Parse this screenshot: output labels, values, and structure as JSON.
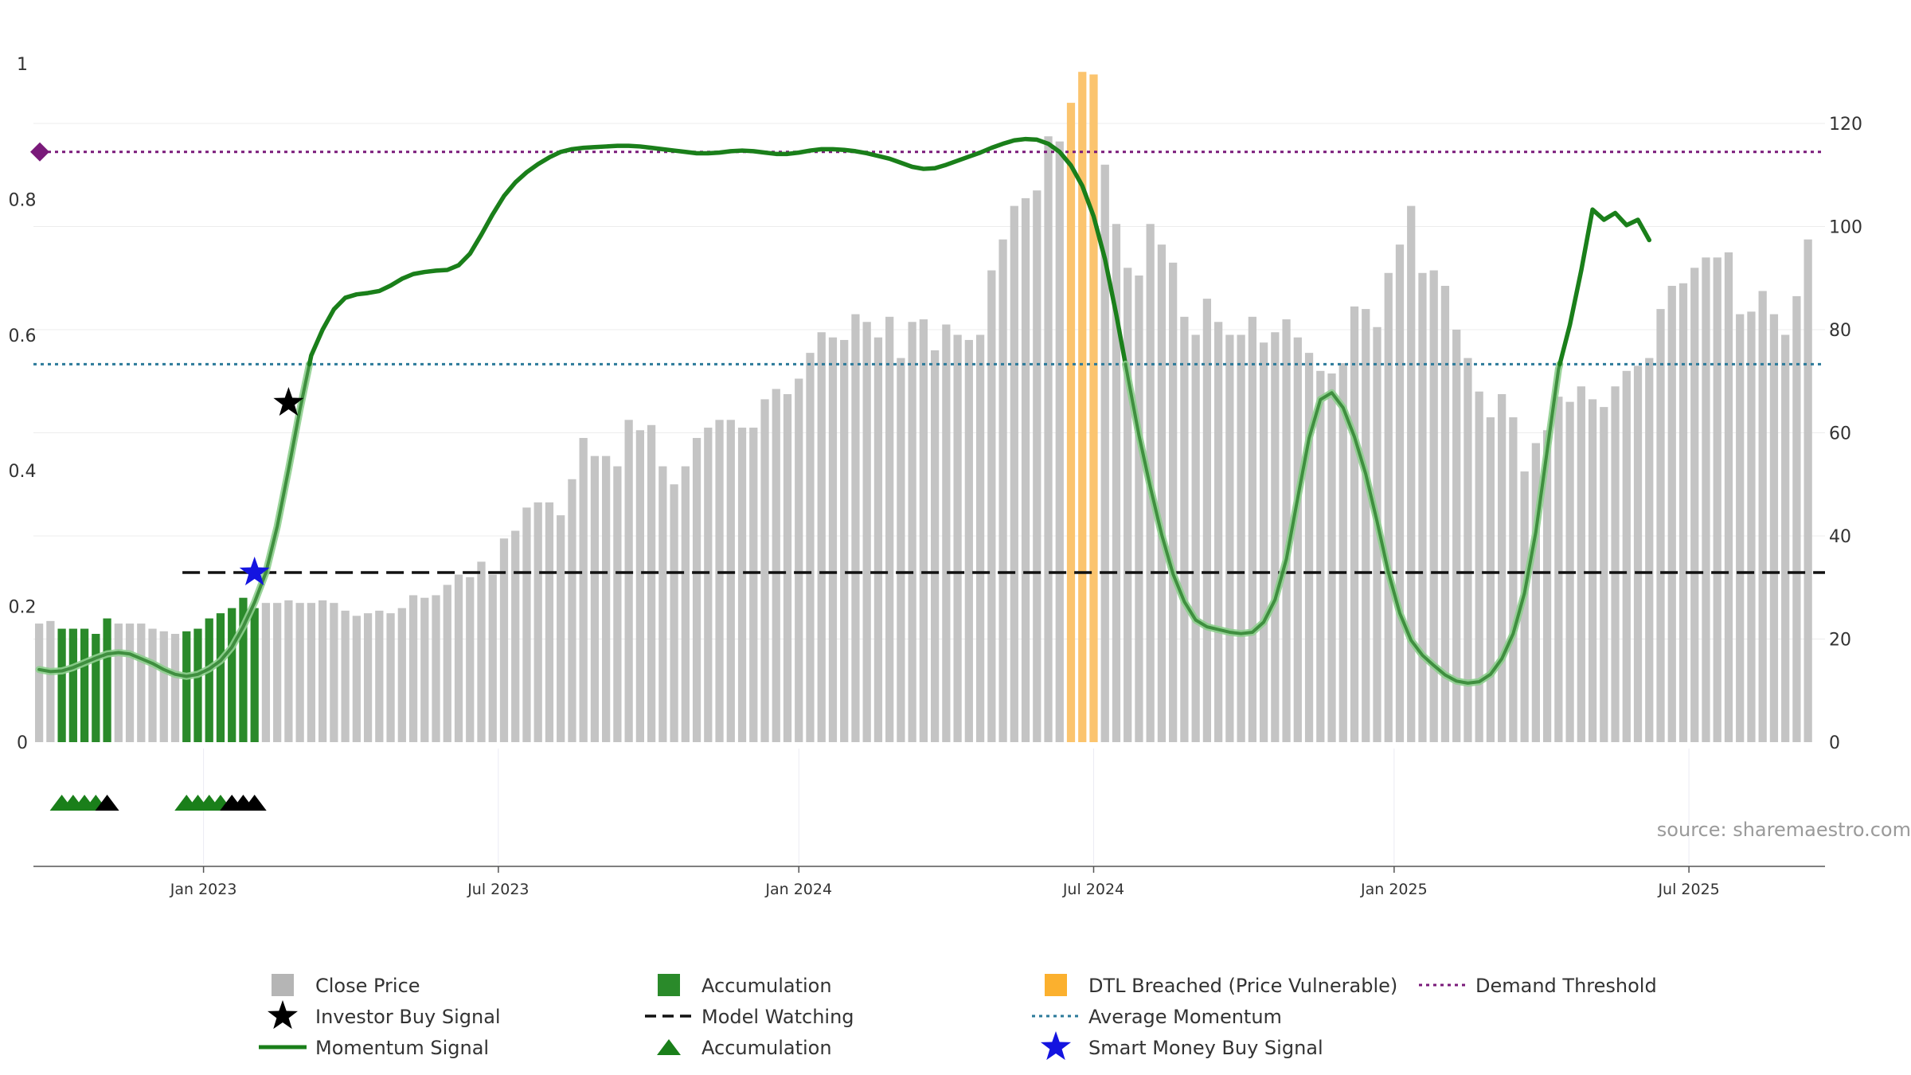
{
  "chart_data": {
    "type": "bar",
    "source_text": "source: sharemaestro.com",
    "left_axis": {
      "range": [
        0,
        1
      ],
      "ticks": [
        "0",
        "0.2",
        "0.4",
        "0.6",
        "0.8",
        "1"
      ],
      "tick_values": [
        0,
        0.2,
        0.4,
        0.6,
        0.8,
        1
      ]
    },
    "right_axis": {
      "range": [
        0,
        135
      ],
      "ticks": [
        "0",
        "20",
        "40",
        "60",
        "80",
        "100",
        "120"
      ],
      "tick_values": [
        0,
        20,
        40,
        60,
        80,
        100,
        120
      ]
    },
    "x_axis": {
      "n_weeks": 158,
      "ticks": [
        {
          "label": "Jan 2023",
          "week": 14.5
        },
        {
          "label": "Jul 2023",
          "week": 40.5
        },
        {
          "label": "Jan 2024",
          "week": 67
        },
        {
          "label": "Jul 2024",
          "week": 93
        },
        {
          "label": "Jan 2025",
          "week": 119.5
        },
        {
          "label": "Jul 2025",
          "week": 145.5
        }
      ]
    },
    "close_prices": [
      23,
      23.5,
      22,
      22,
      22,
      21,
      24,
      23,
      23,
      23,
      22,
      21.5,
      21,
      21.5,
      22,
      24,
      25,
      26,
      28,
      26,
      27,
      27,
      27.5,
      27,
      27,
      27.5,
      27,
      25.5,
      24.5,
      25,
      25.5,
      25,
      26,
      28.5,
      28,
      28.5,
      30.5,
      32.5,
      32,
      35,
      32.5,
      39.5,
      41,
      45.5,
      46.5,
      46.5,
      44,
      51,
      59,
      55.5,
      55.5,
      53.5,
      62.5,
      60.5,
      61.5,
      53.5,
      50,
      53.5,
      59,
      61,
      62.5,
      62.5,
      61,
      61,
      66.5,
      68.5,
      67.5,
      70.5,
      75.5,
      79.5,
      78.5,
      78,
      83,
      81.5,
      78.5,
      82.5,
      74.5,
      81.5,
      82,
      76,
      81,
      79,
      78,
      79,
      91.5,
      97.5,
      104,
      105.5,
      107,
      117.5,
      116.5,
      124,
      130,
      129.5,
      112,
      100.5,
      92,
      90.5,
      100.5,
      96.5,
      93,
      82.5,
      79,
      86,
      81.5,
      79,
      79,
      82.5,
      77.5,
      79.5,
      82,
      78.5,
      75.5,
      72,
      71.5,
      73.5,
      84.5,
      84,
      80.5,
      91,
      96.5,
      104,
      91,
      91.5,
      88.5,
      80,
      74.5,
      68,
      63,
      67.5,
      63,
      52.5,
      58,
      60.5,
      67,
      66,
      69,
      66.5,
      65,
      69,
      72,
      73,
      74.5,
      84,
      88.5,
      89,
      92,
      94,
      94,
      95,
      83,
      83.5,
      87.5,
      83,
      79,
      86.5,
      97.5
    ],
    "categories": {
      "accumulation_weeks": [
        2,
        3,
        4,
        5,
        6,
        13,
        14,
        15,
        16,
        17,
        18,
        19
      ],
      "dtl_breached_weeks": [
        91,
        92,
        93
      ]
    },
    "momentum_signal": [
      [
        0,
        0.107
      ],
      [
        1,
        0.104
      ],
      [
        2,
        0.105
      ],
      [
        3,
        0.11
      ],
      [
        4,
        0.117
      ],
      [
        5,
        0.124
      ],
      [
        6,
        0.13
      ],
      [
        7,
        0.132
      ],
      [
        8,
        0.13
      ],
      [
        9,
        0.123
      ],
      [
        10,
        0.116
      ],
      [
        11,
        0.107
      ],
      [
        12,
        0.1
      ],
      [
        13,
        0.097
      ],
      [
        14,
        0.1
      ],
      [
        15,
        0.108
      ],
      [
        16,
        0.12
      ],
      [
        17,
        0.14
      ],
      [
        18,
        0.17
      ],
      [
        19,
        0.206
      ],
      [
        20,
        0.25
      ],
      [
        21,
        0.318
      ],
      [
        22,
        0.402
      ],
      [
        23,
        0.49
      ],
      [
        24,
        0.57
      ],
      [
        25,
        0.608
      ],
      [
        26,
        0.638
      ],
      [
        27,
        0.655
      ],
      [
        28,
        0.66
      ],
      [
        29,
        0.662
      ],
      [
        30,
        0.665
      ],
      [
        31,
        0.673
      ],
      [
        32,
        0.683
      ],
      [
        33,
        0.69
      ],
      [
        34,
        0.693
      ],
      [
        35,
        0.695
      ],
      [
        36,
        0.696
      ],
      [
        37,
        0.703
      ],
      [
        38,
        0.72
      ],
      [
        39,
        0.748
      ],
      [
        40,
        0.778
      ],
      [
        41,
        0.805
      ],
      [
        42,
        0.825
      ],
      [
        43,
        0.84
      ],
      [
        44,
        0.852
      ],
      [
        45,
        0.862
      ],
      [
        46,
        0.87
      ],
      [
        47,
        0.874
      ],
      [
        48,
        0.876
      ],
      [
        49,
        0.877
      ],
      [
        50,
        0.878
      ],
      [
        51,
        0.879
      ],
      [
        52,
        0.879
      ],
      [
        53,
        0.878
      ],
      [
        54,
        0.876
      ],
      [
        55,
        0.874
      ],
      [
        56,
        0.872
      ],
      [
        57,
        0.87
      ],
      [
        58,
        0.868
      ],
      [
        59,
        0.868
      ],
      [
        60,
        0.869
      ],
      [
        61,
        0.871
      ],
      [
        62,
        0.872
      ],
      [
        63,
        0.871
      ],
      [
        64,
        0.869
      ],
      [
        65,
        0.867
      ],
      [
        66,
        0.867
      ],
      [
        67,
        0.869
      ],
      [
        68,
        0.872
      ],
      [
        69,
        0.874
      ],
      [
        70,
        0.874
      ],
      [
        71,
        0.873
      ],
      [
        72,
        0.871
      ],
      [
        73,
        0.868
      ],
      [
        74,
        0.864
      ],
      [
        75,
        0.86
      ],
      [
        76,
        0.854
      ],
      [
        77,
        0.848
      ],
      [
        78,
        0.845
      ],
      [
        79,
        0.846
      ],
      [
        80,
        0.851
      ],
      [
        81,
        0.857
      ],
      [
        82,
        0.863
      ],
      [
        83,
        0.869
      ],
      [
        84,
        0.876
      ],
      [
        85,
        0.882
      ],
      [
        86,
        0.887
      ],
      [
        87,
        0.889
      ],
      [
        88,
        0.888
      ],
      [
        89,
        0.882
      ],
      [
        90,
        0.87
      ],
      [
        91,
        0.85
      ],
      [
        92,
        0.82
      ],
      [
        93,
        0.775
      ],
      [
        94,
        0.712
      ],
      [
        95,
        0.63
      ],
      [
        96,
        0.54
      ],
      [
        97,
        0.452
      ],
      [
        98,
        0.376
      ],
      [
        99,
        0.306
      ],
      [
        100,
        0.248
      ],
      [
        101,
        0.207
      ],
      [
        102,
        0.18
      ],
      [
        103,
        0.17
      ],
      [
        104,
        0.166
      ],
      [
        105,
        0.162
      ],
      [
        106,
        0.16
      ],
      [
        107,
        0.162
      ],
      [
        108,
        0.177
      ],
      [
        109,
        0.21
      ],
      [
        110,
        0.27
      ],
      [
        111,
        0.36
      ],
      [
        112,
        0.448
      ],
      [
        113,
        0.505
      ],
      [
        114,
        0.515
      ],
      [
        115,
        0.493
      ],
      [
        116,
        0.45
      ],
      [
        117,
        0.395
      ],
      [
        118,
        0.325
      ],
      [
        119,
        0.25
      ],
      [
        120,
        0.19
      ],
      [
        121,
        0.15
      ],
      [
        122,
        0.128
      ],
      [
        123,
        0.113
      ],
      [
        124,
        0.099
      ],
      [
        125,
        0.09
      ],
      [
        126,
        0.087
      ],
      [
        127,
        0.089
      ],
      [
        128,
        0.1
      ],
      [
        129,
        0.123
      ],
      [
        130,
        0.16
      ],
      [
        131,
        0.22
      ],
      [
        132,
        0.31
      ],
      [
        133,
        0.43
      ],
      [
        134,
        0.55
      ],
      [
        135,
        0.615
      ],
      [
        136,
        0.695
      ],
      [
        137,
        0.785
      ],
      [
        138,
        0.77
      ],
      [
        139,
        0.78
      ],
      [
        140,
        0.762
      ],
      [
        141,
        0.77
      ],
      [
        142,
        0.74
      ]
    ],
    "model_watching": {
      "value": 0.25,
      "start_week": 13
    },
    "average_momentum": 0.557,
    "demand_threshold": 0.87,
    "investor_buy_signal": {
      "week": 22,
      "value": 0.5
    },
    "smart_money_buy_signal": {
      "week": 19,
      "value": 0.25
    },
    "accumulation_triangles": [
      {
        "week": 2,
        "color": "green"
      },
      {
        "week": 3,
        "color": "green"
      },
      {
        "week": 4,
        "color": "green"
      },
      {
        "week": 5,
        "color": "green"
      },
      {
        "week": 6,
        "color": "black"
      },
      {
        "week": 13,
        "color": "green"
      },
      {
        "week": 14,
        "color": "green"
      },
      {
        "week": 15,
        "color": "green"
      },
      {
        "week": 16,
        "color": "green"
      },
      {
        "week": 17,
        "color": "black"
      },
      {
        "week": 18,
        "color": "black"
      },
      {
        "week": 19,
        "color": "black"
      }
    ],
    "colors": {
      "close_price": "#c4c4c4",
      "accumulation": "#2a8a2a",
      "dtl_breached": "#fbc46e",
      "momentum": "#1a7f1a",
      "model_watching": "#111111",
      "average_momentum": "#2b7a9a",
      "demand_threshold": "#7a1a7a",
      "smart_money": "#1414e0",
      "investor_signal": "#000000"
    },
    "legend": [
      {
        "label": "Close Price",
        "symbol": "square",
        "color": "#b5b5b5"
      },
      {
        "label": "Investor Buy Signal",
        "symbol": "star",
        "color": "#000000"
      },
      {
        "label": "Momentum Signal",
        "symbol": "line",
        "color": "#1a7f1a"
      },
      {
        "label": "Accumulation",
        "symbol": "square",
        "color": "#2a8a2a"
      },
      {
        "label": "Model Watching",
        "symbol": "dashed",
        "color": "#111111"
      },
      {
        "label": "Accumulation",
        "symbol": "triangle",
        "color": "#1a7f1a"
      },
      {
        "label": "DTL Breached (Price Vulnerable)",
        "symbol": "square",
        "color": "#fbb02e"
      },
      {
        "label": "Average Momentum",
        "symbol": "dotted",
        "color": "#2b7a9a"
      },
      {
        "label": "Smart Money Buy Signal",
        "symbol": "star",
        "color": "#1414e0"
      },
      {
        "label": "Demand Threshold",
        "symbol": "dotted",
        "color": "#7a1a7a"
      }
    ]
  }
}
